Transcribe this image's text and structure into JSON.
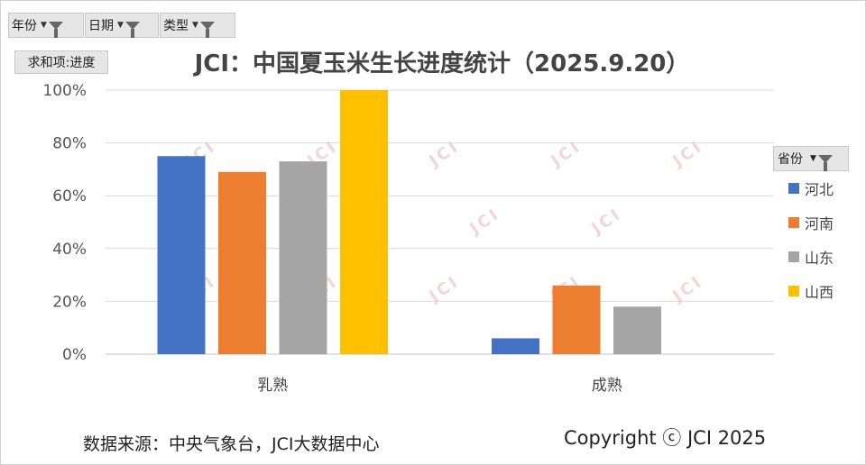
{
  "filters": [
    {
      "label": "年份"
    },
    {
      "label": "日期"
    },
    {
      "label": "类型"
    }
  ],
  "value_field": "求和项:进度",
  "legend_filter": "省份",
  "watermark": "JCI",
  "source": "数据来源：中央气象台，JCI大数据中心",
  "copyright": "Copyright ⓒ JCI 2025",
  "chart_data": {
    "type": "bar",
    "title": "JCI：中国夏玉米生长进度统计（2025.9.20）",
    "categories": [
      "乳熟",
      "成熟"
    ],
    "series": [
      {
        "name": "河北",
        "color": "#4472C4",
        "values": [
          75,
          6
        ]
      },
      {
        "name": "河南",
        "color": "#ED7D31",
        "values": [
          69,
          26
        ]
      },
      {
        "name": "山东",
        "color": "#A5A5A5",
        "values": [
          73,
          18
        ]
      },
      {
        "name": "山西",
        "color": "#FFC000",
        "values": [
          100,
          null
        ]
      }
    ],
    "ylim": [
      0,
      100
    ],
    "yticks": [
      "0%",
      "20%",
      "40%",
      "60%",
      "80%",
      "100%"
    ],
    "ytick_values": [
      0,
      20,
      40,
      60,
      80,
      100
    ],
    "grid": true,
    "legend": "right"
  }
}
